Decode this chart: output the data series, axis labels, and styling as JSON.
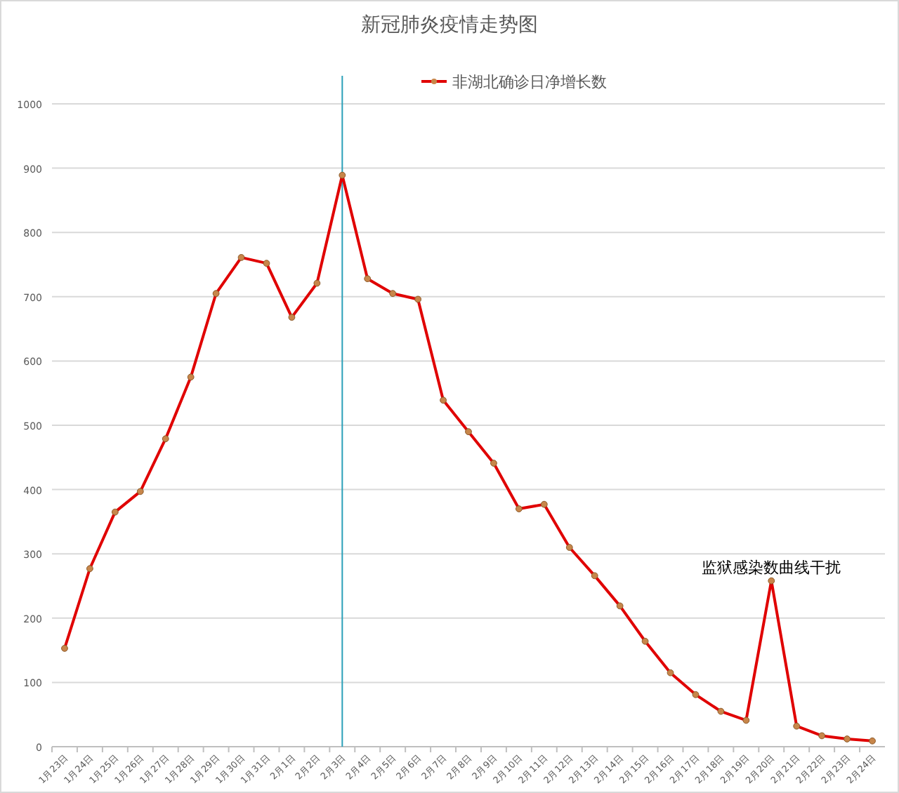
{
  "chart_data": {
    "type": "line",
    "title": "新冠肺炎疫情走势图",
    "categories": [
      "1月23日",
      "1月24日",
      "1月25日",
      "1月26日",
      "1月27日",
      "1月28日",
      "1月29日",
      "1月30日",
      "1月31日",
      "2月1日",
      "2月2日",
      "2月3日",
      "2月4日",
      "2月5日",
      "2月6日",
      "2月7日",
      "2月8日",
      "2月9日",
      "2月10日",
      "2月11日",
      "2月12日",
      "2月13日",
      "2月14日",
      "2月15日",
      "2月16日",
      "2月17日",
      "2月18日",
      "2月19日",
      "2月20日",
      "2月21日",
      "2月22日",
      "2月23日",
      "2月24日"
    ],
    "series": [
      {
        "name": "非湖北确诊日净增长数",
        "color": "#e00000",
        "values": [
          153,
          277,
          365,
          397,
          479,
          575,
          705,
          761,
          752,
          668,
          721,
          889,
          728,
          705,
          696,
          539,
          490,
          441,
          370,
          377,
          310,
          266,
          219,
          164,
          115,
          81,
          55,
          41,
          258,
          32,
          17,
          12,
          9
        ]
      }
    ],
    "ylim": [
      0,
      1000
    ],
    "yticks": [
      0,
      100,
      200,
      300,
      400,
      500,
      600,
      700,
      800,
      900,
      1000
    ],
    "grid": "y",
    "legend": "top",
    "marker": "circle",
    "ref_lines": [
      {
        "axis": "x",
        "value": "2月3日",
        "color": "#2aa0b8"
      }
    ],
    "annotations": [
      {
        "text": "监狱感染数曲线干扰",
        "x": "2月20日",
        "y": 258
      }
    ]
  }
}
